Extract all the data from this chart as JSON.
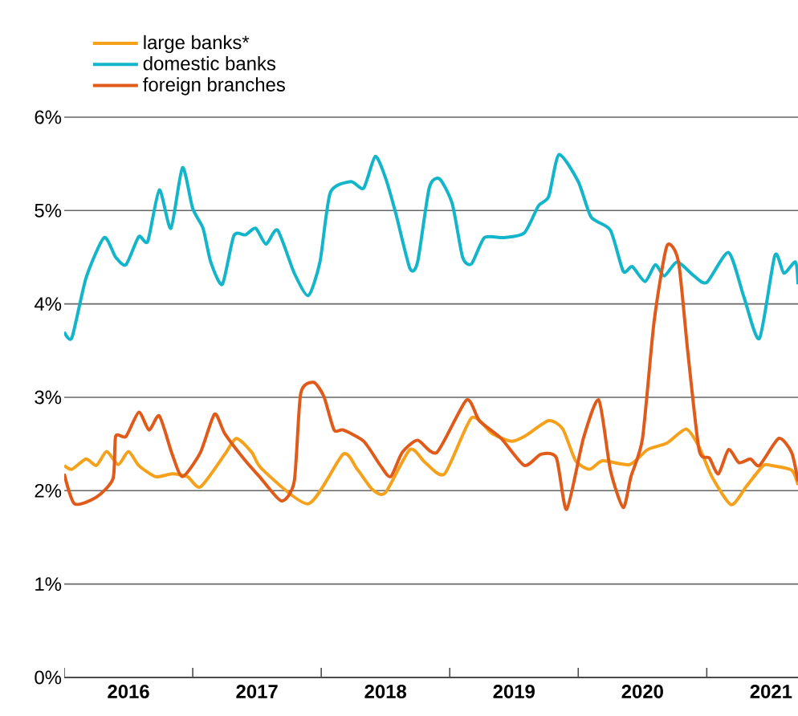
{
  "chart_data": {
    "type": "line",
    "xlim": [
      2016,
      2021.71
    ],
    "xticks": [
      {
        "value": 2016,
        "label": null
      },
      {
        "value": 2016.5,
        "label": "2016"
      },
      {
        "value": 2017,
        "label": null
      },
      {
        "value": 2017.5,
        "label": "2017"
      },
      {
        "value": 2018,
        "label": null
      },
      {
        "value": 2018.5,
        "label": "2018"
      },
      {
        "value": 2019,
        "label": null
      },
      {
        "value": 2019.5,
        "label": "2019"
      },
      {
        "value": 2020,
        "label": null
      },
      {
        "value": 2020.5,
        "label": "2020"
      },
      {
        "value": 2021,
        "label": null
      },
      {
        "value": 2021.5,
        "label": "2021"
      }
    ],
    "ylim": [
      0,
      6
    ],
    "yticks": [
      {
        "value": 0,
        "label": "0%"
      },
      {
        "value": 1,
        "label": "1%"
      },
      {
        "value": 2,
        "label": "2%"
      },
      {
        "value": 3,
        "label": "3%"
      },
      {
        "value": 4,
        "label": "4%"
      },
      {
        "value": 5,
        "label": "5%"
      },
      {
        "value": 6,
        "label": "6%"
      }
    ],
    "grid": "y",
    "legend": "top left",
    "marker": "none",
    "line_style": "solid",
    "series": [
      {
        "name": "large banks*",
        "color": "#f5a11c",
        "x": [
          2016.0,
          2016.06,
          2016.17,
          2016.25,
          2016.33,
          2016.42,
          2016.5,
          2016.58,
          2016.71,
          2016.84,
          2016.96,
          2017.06,
          2017.25,
          2017.34,
          2017.46,
          2017.54,
          2017.9,
          2018.17,
          2018.28,
          2018.4,
          2018.5,
          2018.69,
          2018.81,
          2018.96,
          2019.17,
          2019.33,
          2019.48,
          2019.58,
          2019.77,
          2019.88,
          2019.98,
          2020.09,
          2020.19,
          2020.4,
          2020.54,
          2020.69,
          2020.84,
          2020.94,
          2021.04,
          2021.19,
          2021.31,
          2021.44,
          2021.5,
          2021.66,
          2021.71
        ],
        "values": [
          2.27,
          2.23,
          2.34,
          2.27,
          2.42,
          2.28,
          2.42,
          2.27,
          2.15,
          2.18,
          2.15,
          2.04,
          2.39,
          2.56,
          2.41,
          2.23,
          1.86,
          2.39,
          2.23,
          2.01,
          1.98,
          2.44,
          2.3,
          2.18,
          2.78,
          2.61,
          2.53,
          2.58,
          2.75,
          2.66,
          2.32,
          2.23,
          2.32,
          2.28,
          2.44,
          2.51,
          2.66,
          2.47,
          2.15,
          1.85,
          2.05,
          2.27,
          2.27,
          2.22,
          2.06
        ]
      },
      {
        "name": "domestic banks",
        "color": "#12b5c9",
        "x": [
          2016.0,
          2016.06,
          2016.17,
          2016.31,
          2016.4,
          2016.48,
          2016.58,
          2016.65,
          2016.74,
          2016.83,
          2016.92,
          2017.0,
          2017.08,
          2017.14,
          2017.23,
          2017.32,
          2017.41,
          2017.49,
          2017.57,
          2017.66,
          2017.79,
          2017.9,
          2017.99,
          2018.07,
          2018.23,
          2018.33,
          2018.42,
          2018.5,
          2018.58,
          2018.69,
          2018.75,
          2018.84,
          2018.92,
          2019.02,
          2019.1,
          2019.17,
          2019.27,
          2019.42,
          2019.58,
          2019.69,
          2019.77,
          2019.85,
          2020.0,
          2020.1,
          2020.25,
          2020.35,
          2020.42,
          2020.52,
          2020.6,
          2020.67,
          2020.77,
          2020.9,
          2021.0,
          2021.17,
          2021.29,
          2021.41,
          2021.53,
          2021.6,
          2021.69,
          2021.71
        ],
        "values": [
          3.7,
          3.64,
          4.28,
          4.71,
          4.5,
          4.42,
          4.72,
          4.67,
          5.22,
          4.81,
          5.46,
          5.02,
          4.81,
          4.45,
          4.21,
          4.73,
          4.74,
          4.81,
          4.64,
          4.79,
          4.33,
          4.09,
          4.45,
          5.19,
          5.31,
          5.24,
          5.58,
          5.35,
          4.97,
          4.38,
          4.45,
          5.24,
          5.34,
          5.07,
          4.5,
          4.43,
          4.71,
          4.71,
          4.76,
          5.05,
          5.15,
          5.6,
          5.31,
          4.93,
          4.79,
          4.35,
          4.4,
          4.24,
          4.42,
          4.3,
          4.45,
          4.3,
          4.23,
          4.55,
          4.07,
          3.63,
          4.52,
          4.33,
          4.45,
          4.21
        ]
      },
      {
        "name": "foreign branches",
        "color": "#e05a1a",
        "x": [
          2016.0,
          2016.08,
          2016.25,
          2016.38,
          2016.4,
          2016.48,
          2016.58,
          2016.66,
          2016.74,
          2016.84,
          2016.92,
          2017.06,
          2017.17,
          2017.25,
          2017.41,
          2017.52,
          2017.69,
          2017.79,
          2017.84,
          2017.94,
          2018.02,
          2018.1,
          2018.17,
          2018.33,
          2018.46,
          2018.54,
          2018.63,
          2018.75,
          2018.9,
          2019.13,
          2019.23,
          2019.4,
          2019.58,
          2019.71,
          2019.83,
          2019.91,
          2020.04,
          2020.16,
          2020.25,
          2020.35,
          2020.41,
          2020.5,
          2020.59,
          2020.69,
          2020.78,
          2020.85,
          2020.94,
          2021.02,
          2021.09,
          2021.17,
          2021.25,
          2021.34,
          2021.41,
          2021.56,
          2021.66,
          2021.71
        ],
        "values": [
          2.18,
          1.86,
          1.93,
          2.13,
          2.58,
          2.58,
          2.84,
          2.65,
          2.8,
          2.39,
          2.15,
          2.41,
          2.82,
          2.61,
          2.32,
          2.15,
          1.89,
          2.1,
          3.04,
          3.16,
          3.01,
          2.65,
          2.65,
          2.53,
          2.27,
          2.15,
          2.41,
          2.54,
          2.41,
          2.97,
          2.75,
          2.56,
          2.27,
          2.39,
          2.35,
          1.8,
          2.56,
          2.97,
          2.22,
          1.82,
          2.15,
          2.56,
          3.81,
          4.62,
          4.45,
          3.52,
          2.44,
          2.35,
          2.18,
          2.44,
          2.3,
          2.34,
          2.27,
          2.56,
          2.41,
          2.1
        ]
      }
    ]
  }
}
